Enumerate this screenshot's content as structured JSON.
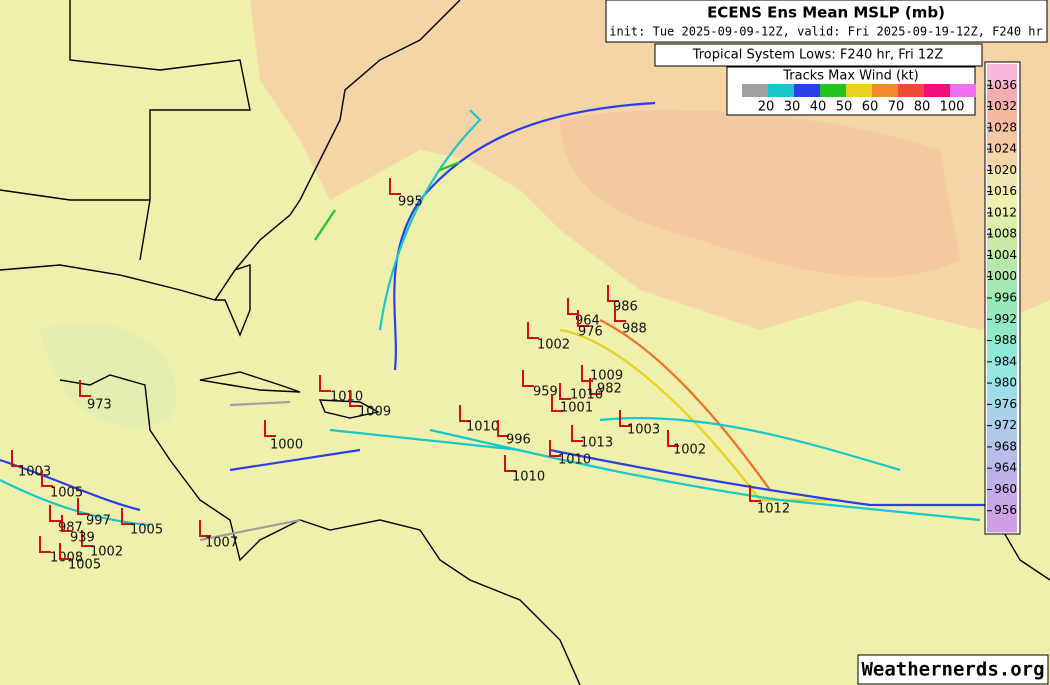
{
  "header": {
    "title": "ECENS Ens Mean MSLP (mb)",
    "init": "init: Tue 2025-09-09-12Z, valid: Fri 2025-09-19-12Z, F240 hr"
  },
  "lows_title": "Tropical System Lows: F240 hr, Fri 12Z",
  "tracks_legend": {
    "title": "Tracks Max Wind (kt)",
    "labels": [
      20,
      30,
      40,
      50,
      60,
      70,
      80,
      100
    ]
  },
  "colorbar": {
    "labels": [
      1036,
      1032,
      1028,
      1024,
      1020,
      1016,
      1012,
      1008,
      1004,
      1000,
      996,
      992,
      988,
      984,
      980,
      976,
      972,
      968,
      964,
      960,
      956
    ]
  },
  "lows": [
    995,
    1002,
    964,
    976,
    986,
    988,
    1009,
    982,
    959,
    1010,
    1001,
    1003,
    1002,
    1010,
    996,
    1013,
    1010,
    1010,
    1012,
    973,
    1010,
    1009,
    1000,
    1007,
    1005,
    1002,
    1008,
    1005,
    997,
    987,
    939,
    1003,
    1005
  ],
  "watermark": "Weathernerds.org"
}
